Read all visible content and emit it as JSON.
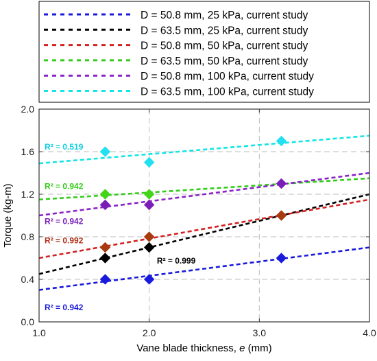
{
  "chart_data": {
    "type": "line",
    "xlabel_parts": [
      "Vane blade thickness, ",
      "e",
      " (mm)"
    ],
    "ylabel": "Torque (kg-m)",
    "xlim": [
      1.0,
      4.0
    ],
    "ylim": [
      0.0,
      2.0
    ],
    "x_ticks": [
      "1.0",
      "2.0",
      "3.0",
      "4.0"
    ],
    "y_ticks": [
      "0.0",
      "0.4",
      "0.8",
      "1.2",
      "1.6",
      "2.0"
    ],
    "grid": "dashed",
    "legend_position": "top",
    "series": [
      {
        "name": "D = 50.8 mm, 25 kPa, current study",
        "color": "#1a1adc",
        "x": [
          1.6,
          2.0,
          3.2
        ],
        "y": [
          0.4,
          0.4,
          0.6
        ],
        "fit": {
          "start": [
            1.0,
            0.3
          ],
          "end": [
            4.0,
            0.7
          ]
        },
        "r2": "R² = 0.942"
      },
      {
        "name": "D = 63.5 mm, 25 kPa, current study",
        "color": "#000000",
        "x": [
          1.6,
          2.0,
          3.2
        ],
        "y": [
          0.6,
          0.7,
          1.0
        ],
        "fit": {
          "start": [
            1.0,
            0.45
          ],
          "end": [
            4.0,
            1.2
          ]
        },
        "r2": "R² = 0.999"
      },
      {
        "name": "D = 50.8 mm, 50 kPa, current study",
        "color": "#d42020",
        "x": [
          1.6,
          2.0,
          3.2
        ],
        "y": [
          0.7,
          0.8,
          1.0
        ],
        "fit": {
          "start": [
            1.0,
            0.6
          ],
          "end": [
            4.0,
            1.15
          ]
        },
        "r2": "R² = 0.992"
      },
      {
        "name": "D = 63.5 mm, 50 kPa, current study",
        "color": "#33cc1a",
        "x": [
          1.6,
          2.0,
          3.2
        ],
        "y": [
          1.2,
          1.2,
          1.3
        ],
        "fit": {
          "start": [
            1.0,
            1.15
          ],
          "end": [
            4.0,
            1.35
          ]
        },
        "r2": "R² = 0.942"
      },
      {
        "name": "D = 50.8 mm, 100 kPa, current study",
        "color": "#8a22c8",
        "x": [
          1.6,
          2.0,
          3.2
        ],
        "y": [
          1.1,
          1.1,
          1.3
        ],
        "fit": {
          "start": [
            1.0,
            1.0
          ],
          "end": [
            4.0,
            1.4
          ]
        },
        "r2": "R² = 0.942"
      },
      {
        "name": "D = 63.5 mm, 100 kPa, current study",
        "color": "#11e6e6",
        "x": [
          1.6,
          2.0,
          3.2
        ],
        "y": [
          1.6,
          1.5,
          1.7
        ],
        "fit": {
          "start": [
            1.0,
            1.49
          ],
          "end": [
            4.0,
            1.75
          ]
        },
        "r2": "R² = 0.519"
      }
    ],
    "marker_colors": [
      "#1a1adc",
      "#000000",
      "#a83a10",
      "#44d41a",
      "#7a1eb8",
      "#22e0f0"
    ],
    "r2_colors": [
      "#1a1adc",
      "#000000",
      "#b0301a",
      "#33cc1a",
      "#7a1eb8",
      "#11d0e0"
    ]
  }
}
